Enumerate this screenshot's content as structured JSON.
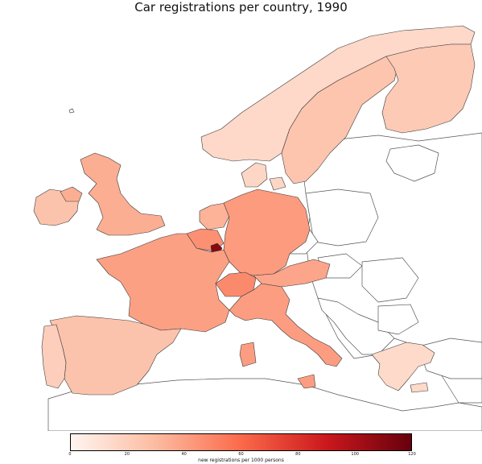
{
  "title": "Car registrations per country, 1990",
  "colorbar": {
    "label": "new registrations per 1000 persons",
    "min": 0,
    "max": 120,
    "ticks": [
      "0",
      "20",
      "40",
      "60",
      "80",
      "100",
      "120"
    ],
    "colors": [
      "#fff5f0",
      "#fcbba1",
      "#fb6a4a",
      "#cb181d",
      "#67000d"
    ]
  },
  "countries": [
    {
      "id": "iceland",
      "value": null
    },
    {
      "id": "ireland",
      "value": 26
    },
    {
      "id": "united-kingdom",
      "value": 35
    },
    {
      "id": "norway",
      "value": 15
    },
    {
      "id": "sweden",
      "value": 25
    },
    {
      "id": "finland",
      "value": 22
    },
    {
      "id": "denmark",
      "value": 16
    },
    {
      "id": "netherlands",
      "value": 33
    },
    {
      "id": "belgium",
      "value": 46
    },
    {
      "id": "luxembourg",
      "value": 110
    },
    {
      "id": "germany",
      "value": 42
    },
    {
      "id": "france",
      "value": 40
    },
    {
      "id": "switzerland",
      "value": 48
    },
    {
      "id": "austria",
      "value": 38
    },
    {
      "id": "spain",
      "value": 26
    },
    {
      "id": "portugal",
      "value": 20
    },
    {
      "id": "italy",
      "value": 41
    },
    {
      "id": "greece",
      "value": 14
    }
  ]
}
